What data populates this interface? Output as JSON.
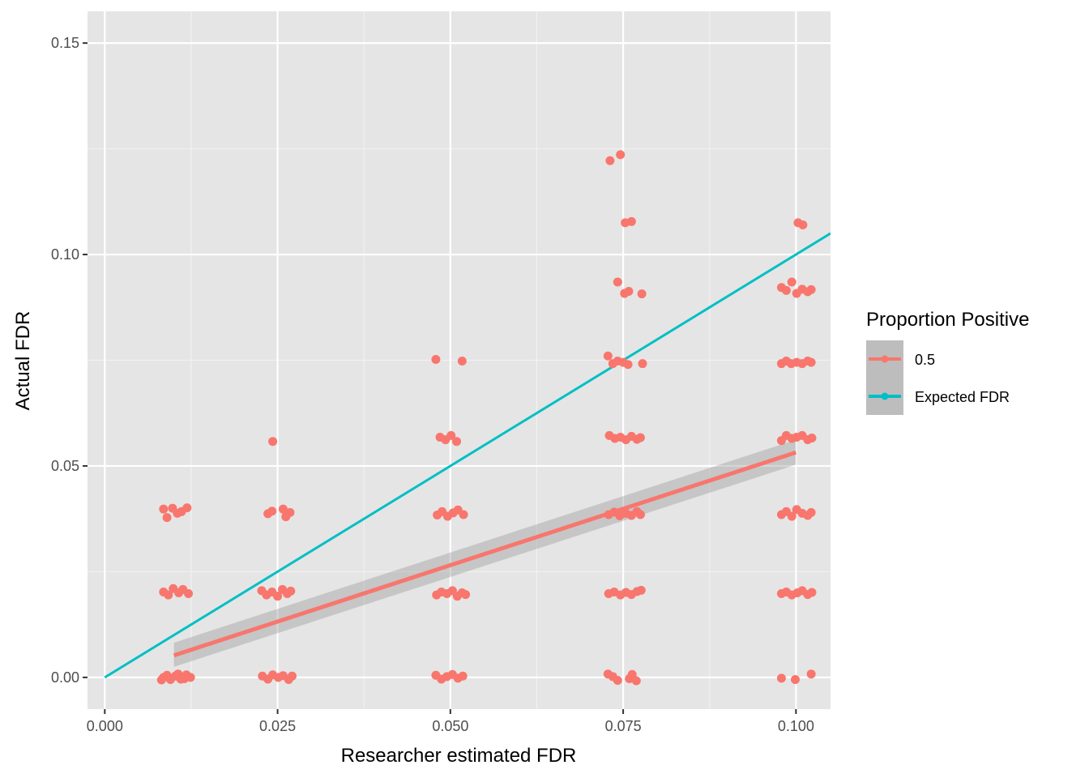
{
  "chart_data": {
    "type": "scatter",
    "title": "",
    "xlabel": "Researcher estimated FDR",
    "ylabel": "Actual FDR",
    "xlim": [
      -0.0025,
      0.105
    ],
    "ylim": [
      -0.0075,
      0.1575
    ],
    "x_ticks": [
      "0.000",
      "0.025",
      "0.050",
      "0.075",
      "0.100"
    ],
    "x_tick_values": [
      0,
      0.025,
      0.05,
      0.075,
      0.1
    ],
    "y_ticks": [
      "0.00",
      "0.05",
      "0.10",
      "0.15"
    ],
    "y_tick_values": [
      0,
      0.05,
      0.1,
      0.15
    ],
    "grid": true,
    "background": "#e5e5e5",
    "legend": {
      "title": "Proportion Positive",
      "placement": "right",
      "entries": [
        "0.5",
        "Expected FDR"
      ]
    },
    "series": [
      {
        "name": "0.5",
        "color": "#f8766d",
        "points": [
          [
            0.0085,
            0.0
          ],
          [
            0.009,
            0.0005
          ],
          [
            0.0095,
            -0.0005
          ],
          [
            0.0102,
            0.0003
          ],
          [
            0.011,
            -0.0004
          ],
          [
            0.0118,
            0.0006
          ],
          [
            0.0124,
            0.0
          ],
          [
            0.0082,
            -0.0006
          ],
          [
            0.0106,
            0.0008
          ],
          [
            0.0115,
            -0.0003
          ],
          [
            0.0085,
            0.0202
          ],
          [
            0.0092,
            0.0195
          ],
          [
            0.0099,
            0.021
          ],
          [
            0.0107,
            0.02
          ],
          [
            0.0113,
            0.0208
          ],
          [
            0.0121,
            0.0198
          ],
          [
            0.0085,
            0.0398
          ],
          [
            0.009,
            0.0378
          ],
          [
            0.0098,
            0.04
          ],
          [
            0.0105,
            0.0388
          ],
          [
            0.0111,
            0.0392
          ],
          [
            0.0119,
            0.0401
          ],
          [
            0.0228,
            0.0003
          ],
          [
            0.0236,
            -0.0004
          ],
          [
            0.0243,
            0.0006
          ],
          [
            0.0251,
            0.0
          ],
          [
            0.0258,
            0.0004
          ],
          [
            0.0266,
            -0.0005
          ],
          [
            0.0271,
            0.0003
          ],
          [
            0.0227,
            0.0205
          ],
          [
            0.0234,
            0.0195
          ],
          [
            0.0242,
            0.0202
          ],
          [
            0.025,
            0.0192
          ],
          [
            0.0257,
            0.0208
          ],
          [
            0.0264,
            0.0198
          ],
          [
            0.0269,
            0.0204
          ],
          [
            0.0236,
            0.0387
          ],
          [
            0.0242,
            0.0393
          ],
          [
            0.0258,
            0.0398
          ],
          [
            0.0262,
            0.038
          ],
          [
            0.0268,
            0.039
          ],
          [
            0.0243,
            0.0558
          ],
          [
            0.0479,
            0.0005
          ],
          [
            0.0487,
            -0.0004
          ],
          [
            0.0495,
            0.0002
          ],
          [
            0.0503,
            0.0007
          ],
          [
            0.0511,
            -0.0002
          ],
          [
            0.0518,
            0.0003
          ],
          [
            0.048,
            0.0195
          ],
          [
            0.0487,
            0.0202
          ],
          [
            0.0495,
            0.0198
          ],
          [
            0.0503,
            0.0205
          ],
          [
            0.051,
            0.0192
          ],
          [
            0.0517,
            0.02
          ],
          [
            0.0522,
            0.0196
          ],
          [
            0.0481,
            0.0384
          ],
          [
            0.0488,
            0.0392
          ],
          [
            0.0496,
            0.0381
          ],
          [
            0.0504,
            0.0389
          ],
          [
            0.0511,
            0.0396
          ],
          [
            0.0519,
            0.0385
          ],
          [
            0.0485,
            0.0568
          ],
          [
            0.0493,
            0.0562
          ],
          [
            0.0501,
            0.0572
          ],
          [
            0.0509,
            0.0558
          ],
          [
            0.0479,
            0.0752
          ],
          [
            0.0517,
            0.0748
          ],
          [
            0.0728,
            0.0008
          ],
          [
            0.0735,
            0.0002
          ],
          [
            0.0742,
            -0.0007
          ],
          [
            0.0759,
            -0.0003
          ],
          [
            0.0763,
            0.0007
          ],
          [
            0.0769,
            -0.0008
          ],
          [
            0.0729,
            0.0198
          ],
          [
            0.0737,
            0.0202
          ],
          [
            0.0746,
            0.0195
          ],
          [
            0.0754,
            0.0201
          ],
          [
            0.0762,
            0.0196
          ],
          [
            0.077,
            0.0203
          ],
          [
            0.0776,
            0.0206
          ],
          [
            0.0729,
            0.0385
          ],
          [
            0.0737,
            0.0391
          ],
          [
            0.0745,
            0.0382
          ],
          [
            0.0754,
            0.0388
          ],
          [
            0.0762,
            0.0383
          ],
          [
            0.077,
            0.0392
          ],
          [
            0.0775,
            0.0385
          ],
          [
            0.073,
            0.0572
          ],
          [
            0.0738,
            0.0565
          ],
          [
            0.0746,
            0.0568
          ],
          [
            0.0754,
            0.0562
          ],
          [
            0.0762,
            0.057
          ],
          [
            0.077,
            0.0563
          ],
          [
            0.0775,
            0.0567
          ],
          [
            0.0728,
            0.076
          ],
          [
            0.0735,
            0.0742
          ],
          [
            0.0742,
            0.0748
          ],
          [
            0.075,
            0.0745
          ],
          [
            0.0757,
            0.074
          ],
          [
            0.0778,
            0.0742
          ],
          [
            0.0742,
            0.0935
          ],
          [
            0.0752,
            0.0908
          ],
          [
            0.0758,
            0.0913
          ],
          [
            0.0777,
            0.0907
          ],
          [
            0.0753,
            0.1075
          ],
          [
            0.0762,
            0.1078
          ],
          [
            0.0731,
            0.1222
          ],
          [
            0.0746,
            0.1236
          ],
          [
            0.0979,
            -0.0002
          ],
          [
            0.0999,
            -0.0005
          ],
          [
            0.1022,
            0.0008
          ],
          [
            0.0979,
            0.0198
          ],
          [
            0.0986,
            0.0202
          ],
          [
            0.0994,
            0.0195
          ],
          [
            0.1002,
            0.02
          ],
          [
            0.1009,
            0.0205
          ],
          [
            0.1017,
            0.0196
          ],
          [
            0.1023,
            0.0201
          ],
          [
            0.0979,
            0.0385
          ],
          [
            0.0986,
            0.0392
          ],
          [
            0.0994,
            0.0381
          ],
          [
            0.1001,
            0.0397
          ],
          [
            0.1009,
            0.0388
          ],
          [
            0.1017,
            0.0383
          ],
          [
            0.1022,
            0.039
          ],
          [
            0.0979,
            0.056
          ],
          [
            0.0986,
            0.0572
          ],
          [
            0.0994,
            0.0565
          ],
          [
            0.1001,
            0.0568
          ],
          [
            0.1009,
            0.0572
          ],
          [
            0.1017,
            0.0562
          ],
          [
            0.1023,
            0.0566
          ],
          [
            0.0979,
            0.0742
          ],
          [
            0.0986,
            0.0748
          ],
          [
            0.0993,
            0.0742
          ],
          [
            0.1001,
            0.0745
          ],
          [
            0.1009,
            0.0742
          ],
          [
            0.1017,
            0.0748
          ],
          [
            0.1022,
            0.0745
          ],
          [
            0.0979,
            0.0922
          ],
          [
            0.0986,
            0.0915
          ],
          [
            0.0994,
            0.0935
          ],
          [
            0.1001,
            0.0908
          ],
          [
            0.1009,
            0.0918
          ],
          [
            0.1017,
            0.0912
          ],
          [
            0.1022,
            0.0917
          ],
          [
            0.1003,
            0.1075
          ],
          [
            0.101,
            0.107
          ]
        ],
        "fit": {
          "method": "linear",
          "x_range": [
            0.01,
            0.1
          ],
          "y_at_start": 0.0052,
          "y_at_end": 0.0532,
          "ci_at_start": [
            0.0025,
            0.0082
          ],
          "ci_at_end": [
            0.0503,
            0.0562
          ],
          "ci_color": "#999999"
        }
      },
      {
        "name": "Expected FDR",
        "color": "#00bfc4",
        "type": "line",
        "x": [
          0,
          0.105
        ],
        "y": [
          0,
          0.105
        ]
      }
    ]
  }
}
